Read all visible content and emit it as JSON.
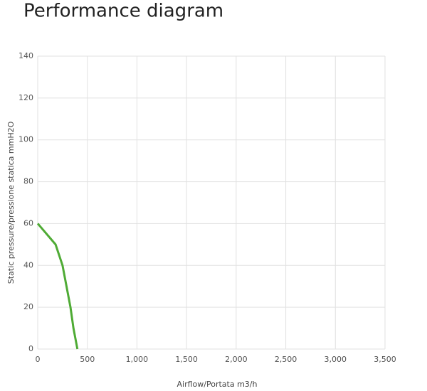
{
  "chart_data": {
    "type": "line",
    "title": "Performance diagram",
    "x_label": "Airflow/Portata m3/h",
    "y_label": "Static pressure/pressione statica mmH2O",
    "x": [
      0,
      180,
      250,
      290,
      330,
      360,
      400
    ],
    "series": [
      {
        "color": "#4fab35",
        "values": [
          60,
          50,
          40,
          30,
          20,
          10,
          0
        ]
      }
    ],
    "xlim": [
      0,
      3500
    ],
    "xticks": [
      0,
      500,
      {
        "value": 1000,
        "label": "1,000"
      },
      {
        "value": 1500,
        "label": "1,500"
      },
      {
        "value": 2000,
        "label": "2,000"
      },
      {
        "value": 2500,
        "label": "2,500"
      },
      {
        "value": 3000,
        "label": "3,000"
      },
      {
        "value": 3500,
        "label": "3,500"
      }
    ],
    "ylim": [
      0,
      140
    ],
    "yticks": [
      0,
      20,
      40,
      60,
      80,
      100,
      120,
      140
    ],
    "grid": true
  }
}
